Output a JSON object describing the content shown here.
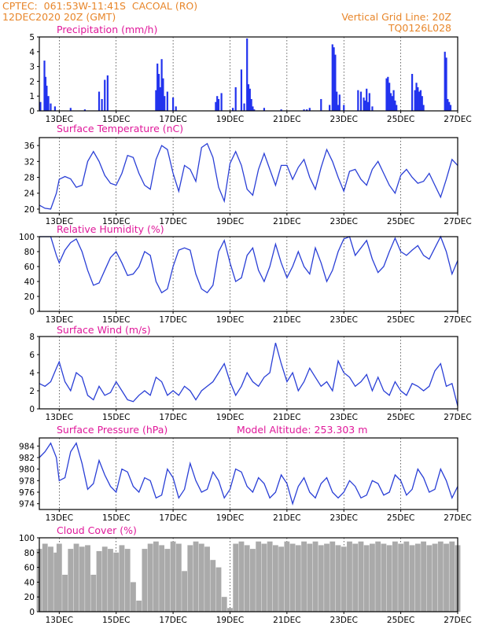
{
  "header": {
    "line1": "CPTEC:  061:53W-11:41S  CACOAL (RO)",
    "line2": "12DEC2020 20Z (GMT)",
    "right1": "Vertical Grid Line: 20Z",
    "right2": "TQ0126L028"
  },
  "colors": {
    "line": "#2a3fd6",
    "bar": "#2233ee",
    "cloud": "#aaaaaa",
    "title": "#e0189a",
    "header": "#e8862a"
  },
  "x_tick_labels": [
    "13DEC",
    "15DEC",
    "17DEC",
    "19DEC",
    "21DEC",
    "23DEC",
    "25DEC",
    "27DEC"
  ],
  "x_tick_days": [
    13,
    15,
    17,
    19,
    21,
    23,
    25,
    27
  ],
  "x_range_days": [
    12.3,
    27.0
  ],
  "chart_data": [
    {
      "type": "bar",
      "title": "Precipitation (mm/h)",
      "ylim": [
        0,
        5
      ],
      "yticks": [
        0,
        1,
        2,
        3,
        4,
        5
      ],
      "x": [
        12.34,
        12.48,
        12.52,
        12.56,
        12.62,
        12.7,
        12.85,
        13.4,
        13.9,
        14.4,
        14.5,
        14.6,
        14.7,
        16.4,
        16.45,
        16.5,
        16.55,
        16.6,
        16.65,
        16.7,
        16.8,
        17.0,
        17.1,
        18.5,
        18.55,
        18.6,
        18.7,
        19.1,
        19.2,
        19.4,
        19.5,
        19.6,
        19.65,
        19.7,
        19.75,
        19.8,
        19.85,
        20.2,
        20.8,
        21.6,
        21.7,
        21.8,
        22.2,
        22.5,
        22.6,
        22.65,
        22.7,
        22.75,
        22.8,
        22.85,
        23.0,
        23.5,
        23.6,
        23.7,
        23.75,
        23.8,
        23.85,
        23.9,
        24.0,
        24.5,
        24.55,
        24.6,
        24.65,
        24.7,
        24.75,
        24.8,
        24.85,
        25.4,
        25.5,
        25.55,
        25.6,
        25.65,
        25.7,
        25.75,
        25.8,
        26.55,
        26.6,
        26.65,
        26.7,
        26.75
      ],
      "values": [
        0.6,
        3.4,
        2.3,
        1.7,
        1.0,
        0.5,
        0.3,
        0.2,
        0.1,
        1.3,
        0.8,
        2.1,
        2.4,
        1.4,
        3.2,
        2.5,
        1.6,
        3.5,
        2.2,
        1.0,
        1.3,
        0.9,
        0.3,
        0.6,
        1.0,
        0.8,
        1.2,
        0.2,
        1.6,
        2.8,
        0.5,
        4.9,
        1.8,
        1.5,
        0.8,
        0.3,
        0.1,
        0.2,
        0.1,
        0.1,
        0.1,
        0.2,
        0.8,
        0.4,
        4.5,
        4.3,
        3.8,
        1.3,
        0.4,
        1.1,
        0.4,
        1.4,
        1.3,
        0.9,
        0.7,
        1.5,
        0.6,
        1.2,
        0.3,
        2.2,
        2.3,
        1.9,
        1.2,
        1.0,
        1.4,
        0.7,
        0.4,
        2.5,
        1.4,
        1.9,
        1.6,
        1.3,
        1.4,
        1.0,
        0.4,
        4.0,
        3.6,
        0.8,
        0.6,
        0.4
      ]
    },
    {
      "type": "line",
      "title": "Surface Temperature (nC)",
      "ylim": [
        19,
        38
      ],
      "yticks": [
        20,
        24,
        28,
        32,
        36
      ],
      "x": [
        12.3,
        12.5,
        12.7,
        12.9,
        13.0,
        13.2,
        13.4,
        13.6,
        13.8,
        14.0,
        14.2,
        14.4,
        14.6,
        14.8,
        15.0,
        15.2,
        15.4,
        15.6,
        15.8,
        16.0,
        16.2,
        16.4,
        16.6,
        16.8,
        17.0,
        17.2,
        17.4,
        17.6,
        17.8,
        18.0,
        18.2,
        18.4,
        18.6,
        18.8,
        19.0,
        19.2,
        19.4,
        19.6,
        19.8,
        20.0,
        20.2,
        20.4,
        20.6,
        20.8,
        21.0,
        21.2,
        21.4,
        21.6,
        21.8,
        22.0,
        22.2,
        22.4,
        22.6,
        22.8,
        23.0,
        23.2,
        23.4,
        23.6,
        23.8,
        24.0,
        24.2,
        24.4,
        24.6,
        24.8,
        25.0,
        25.2,
        25.4,
        25.6,
        25.8,
        26.0,
        26.2,
        26.4,
        26.6,
        26.8,
        27.0
      ],
      "values": [
        21.0,
        20.2,
        20.0,
        24.0,
        27.5,
        28.2,
        27.6,
        25.5,
        26.0,
        32.0,
        34.5,
        32.0,
        28.5,
        26.5,
        26.0,
        29.0,
        33.5,
        33.0,
        29.0,
        26.0,
        25.0,
        32.5,
        36.0,
        35.0,
        29.0,
        24.5,
        31.0,
        30.0,
        27.0,
        35.5,
        36.5,
        33.0,
        25.5,
        22.0,
        31.5,
        34.5,
        31.0,
        25.0,
        23.5,
        30.0,
        34.0,
        30.0,
        26.0,
        31.0,
        31.0,
        27.5,
        30.5,
        32.5,
        28.0,
        25.0,
        30.5,
        35.0,
        32.0,
        28.0,
        24.5,
        29.5,
        30.0,
        27.5,
        26.0,
        30.0,
        32.0,
        29.0,
        26.0,
        24.0,
        28.5,
        30.0,
        28.0,
        26.5,
        27.0,
        29.0,
        26.0,
        23.0,
        27.5,
        32.5,
        31.0
      ]
    },
    {
      "type": "line",
      "title": "Relative Humidity (%)",
      "ylim": [
        0,
        100
      ],
      "yticks": [
        0,
        20,
        40,
        60,
        80,
        100
      ],
      "x": [
        12.3,
        12.5,
        12.7,
        12.9,
        13.0,
        13.2,
        13.4,
        13.6,
        13.8,
        14.0,
        14.2,
        14.4,
        14.6,
        14.8,
        15.0,
        15.2,
        15.4,
        15.6,
        15.8,
        16.0,
        16.2,
        16.4,
        16.6,
        16.8,
        17.0,
        17.2,
        17.4,
        17.6,
        17.8,
        18.0,
        18.2,
        18.4,
        18.6,
        18.8,
        19.0,
        19.2,
        19.4,
        19.6,
        19.8,
        20.0,
        20.2,
        20.4,
        20.6,
        20.8,
        21.0,
        21.2,
        21.4,
        21.6,
        21.8,
        22.0,
        22.2,
        22.4,
        22.6,
        22.8,
        23.0,
        23.2,
        23.4,
        23.6,
        23.8,
        24.0,
        24.2,
        24.4,
        24.6,
        24.8,
        25.0,
        25.2,
        25.4,
        25.6,
        25.8,
        26.0,
        26.2,
        26.4,
        26.6,
        26.8,
        27.0
      ],
      "values": [
        100,
        100,
        100,
        75,
        65,
        82,
        92,
        97,
        80,
        55,
        35,
        38,
        55,
        72,
        80,
        65,
        48,
        50,
        60,
        80,
        75,
        40,
        25,
        30,
        60,
        82,
        85,
        82,
        50,
        30,
        25,
        35,
        80,
        95,
        65,
        40,
        45,
        75,
        85,
        55,
        40,
        60,
        90,
        65,
        45,
        60,
        80,
        60,
        50,
        85,
        65,
        40,
        55,
        80,
        97,
        100,
        75,
        85,
        95,
        70,
        52,
        60,
        80,
        98,
        80,
        75,
        82,
        88,
        75,
        70,
        85,
        100,
        80,
        50,
        68
      ]
    },
    {
      "type": "line",
      "title": "Surface Wind (m/s)",
      "ylim": [
        0,
        8
      ],
      "yticks": [
        0,
        2,
        4,
        6,
        8
      ],
      "x": [
        12.3,
        12.5,
        12.7,
        12.9,
        13.0,
        13.2,
        13.4,
        13.6,
        13.8,
        14.0,
        14.2,
        14.4,
        14.6,
        14.8,
        15.0,
        15.2,
        15.4,
        15.6,
        15.8,
        16.0,
        16.2,
        16.4,
        16.6,
        16.8,
        17.0,
        17.2,
        17.4,
        17.6,
        17.8,
        18.0,
        18.2,
        18.4,
        18.6,
        18.8,
        19.0,
        19.2,
        19.4,
        19.6,
        19.8,
        20.0,
        20.2,
        20.4,
        20.6,
        20.8,
        21.0,
        21.2,
        21.4,
        21.6,
        21.8,
        22.0,
        22.2,
        22.4,
        22.6,
        22.8,
        23.0,
        23.2,
        23.4,
        23.6,
        23.8,
        24.0,
        24.2,
        24.4,
        24.6,
        24.8,
        25.0,
        25.2,
        25.4,
        25.6,
        25.8,
        26.0,
        26.2,
        26.4,
        26.6,
        26.8,
        27.0
      ],
      "values": [
        2.8,
        2.5,
        3.0,
        4.5,
        5.2,
        3.0,
        2.0,
        4.0,
        3.5,
        1.5,
        1.0,
        2.5,
        1.5,
        1.8,
        3.0,
        2.0,
        1.0,
        0.8,
        1.5,
        2.0,
        1.5,
        3.5,
        3.0,
        1.5,
        2.0,
        1.5,
        2.5,
        2.0,
        1.0,
        2.0,
        2.5,
        3.0,
        4.0,
        5.0,
        3.0,
        1.5,
        2.5,
        4.0,
        3.0,
        2.5,
        3.5,
        4.0,
        7.3,
        5.0,
        3.0,
        4.0,
        2.0,
        3.0,
        4.5,
        3.5,
        2.5,
        3.0,
        2.0,
        5.3,
        4.0,
        3.5,
        2.5,
        3.0,
        3.8,
        2.0,
        3.5,
        2.0,
        1.5,
        3.0,
        2.0,
        1.5,
        2.8,
        2.5,
        2.0,
        2.5,
        4.2,
        5.0,
        2.5,
        2.8,
        0.3
      ]
    },
    {
      "type": "line",
      "title": "Surface Pressure (hPa)",
      "annotation": "Model Altitude: 253.303 m",
      "ylim": [
        973,
        985.4
      ],
      "yticks": [
        974,
        976,
        978,
        980,
        982,
        984
      ],
      "x": [
        12.3,
        12.5,
        12.7,
        12.9,
        13.0,
        13.2,
        13.4,
        13.6,
        13.8,
        14.0,
        14.2,
        14.4,
        14.6,
        14.8,
        15.0,
        15.2,
        15.4,
        15.6,
        15.8,
        16.0,
        16.2,
        16.4,
        16.6,
        16.8,
        17.0,
        17.2,
        17.4,
        17.6,
        17.8,
        18.0,
        18.2,
        18.4,
        18.6,
        18.8,
        19.0,
        19.2,
        19.4,
        19.6,
        19.8,
        20.0,
        20.2,
        20.4,
        20.6,
        20.8,
        21.0,
        21.2,
        21.4,
        21.6,
        21.8,
        22.0,
        22.2,
        22.4,
        22.6,
        22.8,
        23.0,
        23.2,
        23.4,
        23.6,
        23.8,
        24.0,
        24.2,
        24.4,
        24.6,
        24.8,
        25.0,
        25.2,
        25.4,
        25.6,
        25.8,
        26.0,
        26.2,
        26.4,
        26.6,
        26.8,
        27.0
      ],
      "values": [
        982.0,
        983.0,
        984.5,
        982.0,
        978.0,
        978.5,
        983.0,
        984.5,
        981.0,
        976.5,
        977.5,
        981.5,
        979.0,
        977.0,
        976.0,
        980.0,
        979.5,
        977.0,
        976.0,
        978.5,
        978.0,
        975.0,
        975.5,
        980.0,
        978.5,
        975.0,
        976.5,
        981.0,
        978.0,
        976.0,
        976.5,
        979.5,
        978.0,
        975.0,
        976.5,
        980.0,
        979.5,
        977.0,
        976.0,
        978.5,
        977.5,
        975.0,
        976.0,
        979.0,
        977.5,
        974.0,
        977.0,
        978.5,
        976.0,
        975.0,
        977.5,
        978.5,
        976.0,
        975.0,
        976.0,
        978.0,
        977.0,
        975.0,
        975.5,
        978.0,
        977.5,
        975.5,
        976.0,
        979.0,
        978.0,
        975.5,
        976.5,
        980.0,
        978.5,
        976.0,
        976.5,
        980.0,
        978.0,
        975.0,
        977.0
      ]
    },
    {
      "type": "area",
      "title": "Cloud Cover (%)",
      "ylim": [
        0,
        100
      ],
      "yticks": [
        0,
        20,
        40,
        60,
        80,
        100
      ],
      "x": [
        12.3,
        12.5,
        12.7,
        12.9,
        13.0,
        13.2,
        13.4,
        13.6,
        13.8,
        14.0,
        14.2,
        14.4,
        14.6,
        14.8,
        15.0,
        15.2,
        15.4,
        15.6,
        15.8,
        16.0,
        16.2,
        16.4,
        16.6,
        16.8,
        17.0,
        17.2,
        17.4,
        17.6,
        17.8,
        18.0,
        18.2,
        18.4,
        18.6,
        18.8,
        19.0,
        19.2,
        19.4,
        19.6,
        19.8,
        20.0,
        20.2,
        20.4,
        20.6,
        20.8,
        21.0,
        21.2,
        21.4,
        21.6,
        21.8,
        22.0,
        22.2,
        22.4,
        22.6,
        22.8,
        23.0,
        23.2,
        23.4,
        23.6,
        23.8,
        24.0,
        24.2,
        24.4,
        24.6,
        24.8,
        25.0,
        25.2,
        25.4,
        25.6,
        25.8,
        26.0,
        26.2,
        26.4,
        26.6,
        26.8,
        27.0
      ],
      "values": [
        85,
        92,
        88,
        80,
        92,
        50,
        85,
        92,
        88,
        90,
        50,
        82,
        88,
        85,
        80,
        90,
        85,
        40,
        15,
        85,
        92,
        95,
        90,
        85,
        95,
        92,
        55,
        90,
        95,
        92,
        88,
        70,
        60,
        20,
        5,
        92,
        95,
        90,
        85,
        95,
        92,
        95,
        90,
        88,
        95,
        92,
        90,
        95,
        92,
        95,
        90,
        92,
        95,
        90,
        88,
        95,
        92,
        95,
        90,
        92,
        95,
        92,
        90,
        95,
        92,
        95,
        90,
        92,
        95,
        90,
        92,
        95,
        92,
        95,
        90
      ]
    }
  ]
}
